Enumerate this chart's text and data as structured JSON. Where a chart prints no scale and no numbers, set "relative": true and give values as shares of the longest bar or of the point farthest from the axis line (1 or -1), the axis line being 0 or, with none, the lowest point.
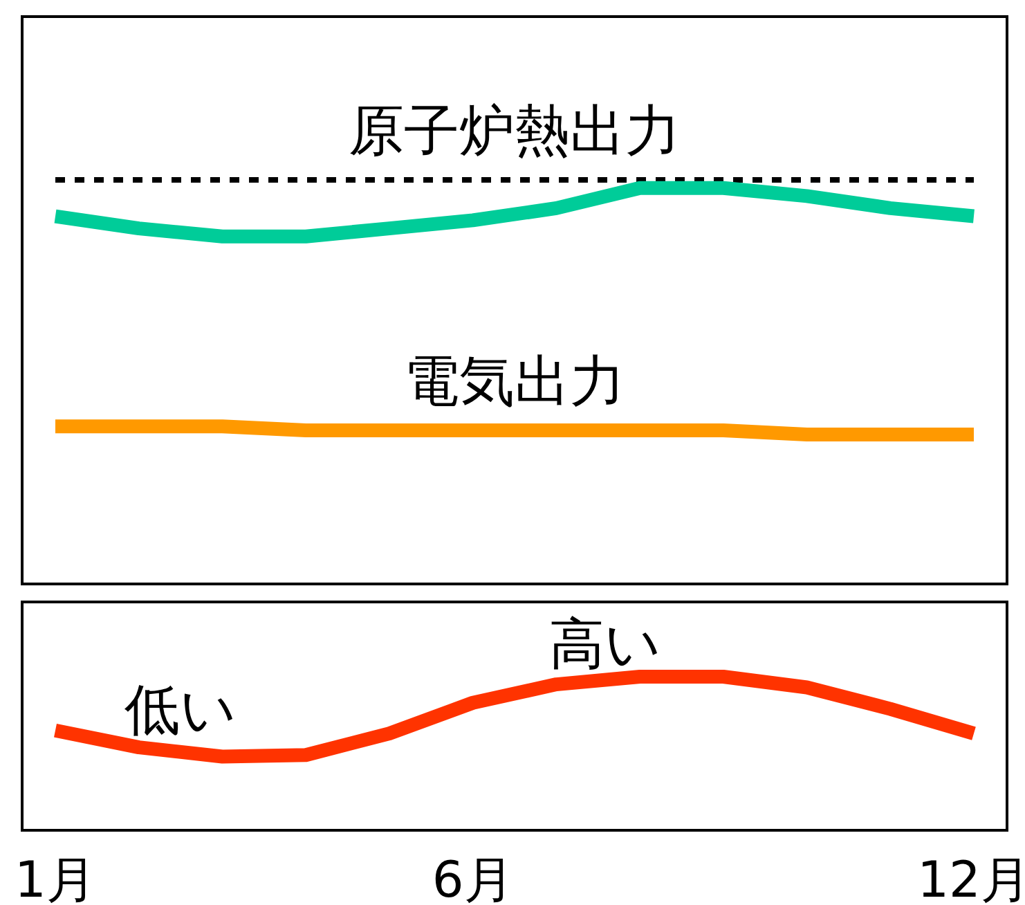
{
  "chart_data": [
    {
      "type": "line",
      "relative": true,
      "categories": [
        null,
        null,
        null,
        null,
        null,
        null,
        null,
        null,
        null,
        null,
        null,
        null
      ],
      "series": [
        {
          "name": "原子炉熱出力",
          "color": "#000000",
          "line_style": "dotted",
          "values": [
            1,
            1,
            1,
            1,
            1,
            1,
            1,
            1,
            1,
            1,
            1,
            1
          ]
        },
        {
          "color": "#00cc99",
          "values": [
            0.91,
            0.88,
            0.86,
            0.86,
            0.88,
            0.9,
            0.93,
            0.98,
            0.98,
            0.96,
            0.93,
            0.91
          ]
        },
        {
          "name": "電気出力",
          "color": "#ff9900",
          "values": [
            0.39,
            0.39,
            0.39,
            0.38,
            0.38,
            0.38,
            0.38,
            0.38,
            0.38,
            0.37,
            0.37,
            0.37
          ]
        }
      ]
    },
    {
      "type": "line",
      "relative": true,
      "tick_labels": "x",
      "categories": [
        "1月",
        null,
        null,
        null,
        null,
        "6月",
        null,
        null,
        null,
        null,
        null,
        "12月"
      ],
      "series": [
        {
          "color": "#ff3300",
          "values": [
            0.65,
            0.54,
            0.48,
            0.49,
            0.63,
            0.83,
            0.95,
            1,
            1,
            0.93,
            0.79,
            0.63
          ]
        }
      ],
      "annotations": [
        "低い",
        "高い"
      ]
    }
  ]
}
